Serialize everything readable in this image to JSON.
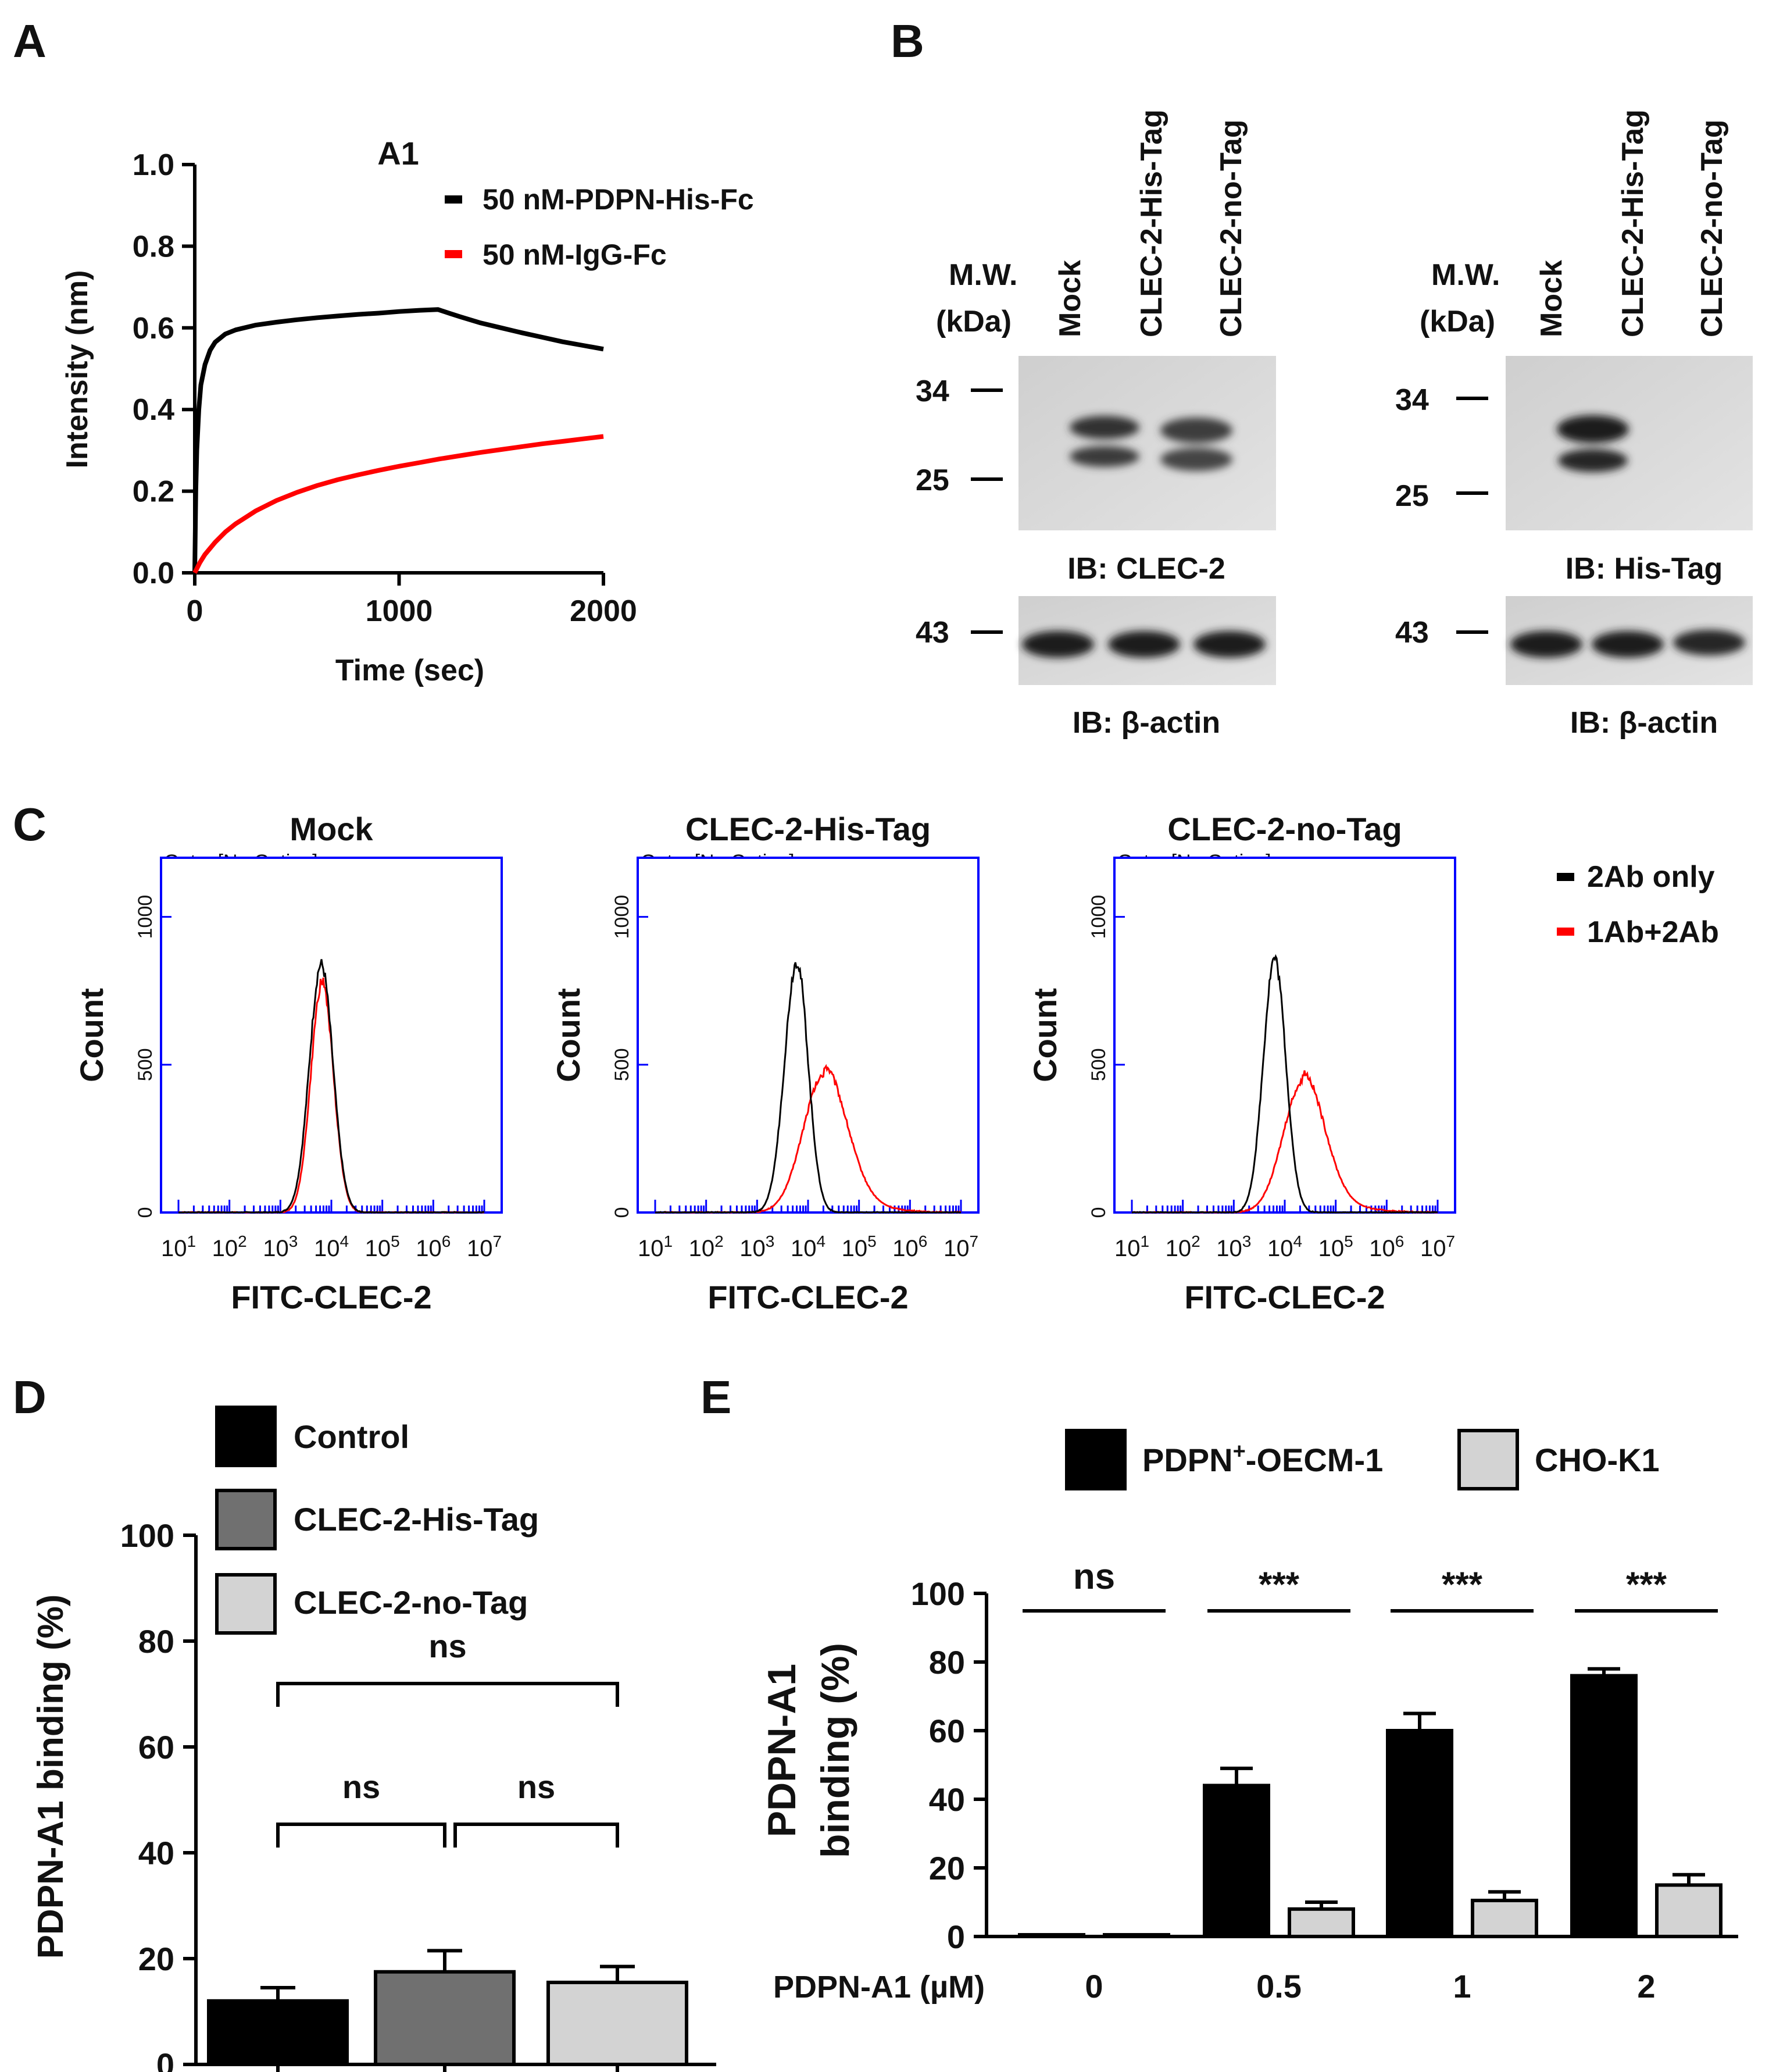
{
  "colors": {
    "black": "#000000",
    "red": "#ff0000",
    "blue": "#0000ff",
    "dark_gray": "#707070",
    "light_gray": "#d3d3d3"
  },
  "panel_letters": {
    "a": "A",
    "b": "B",
    "c": "C",
    "d": "D",
    "e": "E"
  },
  "chart_data": [
    {
      "panel": "A",
      "type": "line",
      "title": "A1",
      "xlabel": "Time (sec)",
      "ylabel": "Intensity (nm)",
      "xlim": [
        0,
        2000
      ],
      "ylim": [
        0,
        1.0
      ],
      "xticks": [
        "0",
        "1000",
        "2000"
      ],
      "yticks": [
        "0.0",
        "0.2",
        "0.4",
        "0.6",
        "0.8",
        "1.0"
      ],
      "legend": [
        "50 nM-PDPN-His-Fc",
        "50 nM-IgG-Fc"
      ],
      "series": [
        {
          "name": "50 nM-PDPN-His-Fc",
          "color": "#000000",
          "x": [
            0,
            5,
            10,
            20,
            30,
            50,
            75,
            100,
            150,
            200,
            300,
            400,
            500,
            600,
            700,
            800,
            900,
            1000,
            1100,
            1190,
            1250,
            1300,
            1400,
            1500,
            1600,
            1700,
            1800,
            1900,
            2000
          ],
          "y": [
            0,
            0.2,
            0.3,
            0.4,
            0.46,
            0.51,
            0.545,
            0.565,
            0.585,
            0.595,
            0.607,
            0.614,
            0.62,
            0.625,
            0.629,
            0.633,
            0.636,
            0.64,
            0.643,
            0.645,
            0.635,
            0.627,
            0.612,
            0.6,
            0.588,
            0.577,
            0.566,
            0.557,
            0.548
          ]
        },
        {
          "name": "50 nM-IgG-Fc",
          "color": "#ff0000",
          "x": [
            0,
            25,
            50,
            100,
            150,
            200,
            300,
            400,
            500,
            600,
            700,
            800,
            900,
            1000,
            1100,
            1200,
            1300,
            1400,
            1500,
            1600,
            1700,
            1800,
            1900,
            2000
          ],
          "y": [
            0,
            0.025,
            0.045,
            0.075,
            0.1,
            0.12,
            0.152,
            0.177,
            0.197,
            0.214,
            0.228,
            0.24,
            0.251,
            0.261,
            0.27,
            0.279,
            0.287,
            0.295,
            0.302,
            0.309,
            0.316,
            0.322,
            0.328,
            0.334
          ]
        }
      ]
    },
    {
      "panel": "C",
      "type": "histogram",
      "xlabel": "FITC-CLEC-2",
      "ylabel": "Count",
      "ylim": [
        0,
        1200
      ],
      "yticks": [
        "0",
        "500",
        "1000"
      ],
      "xtick_base": "10",
      "xtick_exps": [
        "1",
        "2",
        "3",
        "4",
        "5",
        "6",
        "7"
      ],
      "cropped_header": "Gate: [No Gating]",
      "legend": [
        "2Ab only",
        "1Ab+2Ab"
      ],
      "subplots": [
        {
          "title": "Mock",
          "series": [
            {
              "name": "2Ab only",
              "peak_log10": 3.8,
              "peak_count": 840,
              "sigma_left": 0.23,
              "sigma_right": 0.23,
              "tail": 0
            },
            {
              "name": "1Ab+2Ab",
              "peak_log10": 3.82,
              "peak_count": 780,
              "sigma_left": 0.22,
              "sigma_right": 0.22,
              "tail": 0
            }
          ]
        },
        {
          "title": "CLEC-2-His-Tag",
          "series": [
            {
              "name": "2Ab only",
              "peak_log10": 3.78,
              "peak_count": 850,
              "sigma_left": 0.24,
              "sigma_right": 0.22,
              "tail": 0
            },
            {
              "name": "1Ab+2Ab",
              "peak_log10": 4.3,
              "peak_count": 460,
              "sigma_left": 0.4,
              "sigma_right": 0.45,
              "tail": 0.08
            }
          ]
        },
        {
          "title": "CLEC-2-no-Tag",
          "series": [
            {
              "name": "2Ab only",
              "peak_log10": 3.8,
              "peak_count": 860,
              "sigma_left": 0.22,
              "sigma_right": 0.22,
              "tail": 0
            },
            {
              "name": "1Ab+2Ab",
              "peak_log10": 4.35,
              "peak_count": 440,
              "sigma_left": 0.38,
              "sigma_right": 0.42,
              "tail": 0.08
            }
          ]
        }
      ]
    },
    {
      "panel": "D",
      "type": "bar",
      "ylabel": "PDPN-A1 binding (%)",
      "ylim": [
        0,
        100
      ],
      "yticks": [
        "0",
        "20",
        "40",
        "60",
        "80",
        "100"
      ],
      "categories": [
        "Control",
        "CLEC-2-His-Tag",
        "CLEC-2-no-Tag"
      ],
      "values": [
        12,
        17.5,
        15.5
      ],
      "errors": [
        2.5,
        4,
        3
      ],
      "significance": [
        {
          "from": 0,
          "to": 1,
          "label": "ns"
        },
        {
          "from": 1,
          "to": 2,
          "label": "ns"
        },
        {
          "from": 0,
          "to": 2,
          "label": "ns"
        }
      ]
    },
    {
      "panel": "E",
      "type": "bar",
      "ylabel": [
        "PDPN-A1",
        "binding (%)"
      ],
      "ylim": [
        0,
        100
      ],
      "yticks": [
        "0",
        "20",
        "40",
        "60",
        "80",
        "100"
      ],
      "xlabel": "PDPN-A1 (µM)",
      "categories": [
        "0",
        "0.5",
        "1",
        "2"
      ],
      "legend": [
        {
          "label": "PDPN",
          "sup": "+",
          "suffix": "-OECM-1"
        },
        {
          "label": "CHO-K1"
        }
      ],
      "series": [
        {
          "name": "PDPN+-OECM-1",
          "values": [
            0.5,
            44,
            60,
            76
          ],
          "errors": [
            0,
            5,
            5,
            2
          ]
        },
        {
          "name": "CHO-K1",
          "values": [
            0.5,
            8,
            10.5,
            15
          ],
          "errors": [
            0,
            2,
            2.5,
            3
          ]
        }
      ],
      "significance": [
        "ns",
        "***",
        "***",
        "***"
      ]
    }
  ],
  "western_blot": {
    "mw_header_1": "M.W.",
    "mw_header_2": "(kDa)",
    "lanes": [
      "Mock",
      "CLEC-2-His-Tag",
      "CLEC-2-no-Tag"
    ],
    "markers": [
      "34",
      "25",
      "43"
    ],
    "blots": [
      {
        "label": "IB: CLEC-2",
        "control_label": "IB: β-actin"
      },
      {
        "label": "IB: His-Tag",
        "control_label": "IB: β-actin"
      }
    ]
  }
}
